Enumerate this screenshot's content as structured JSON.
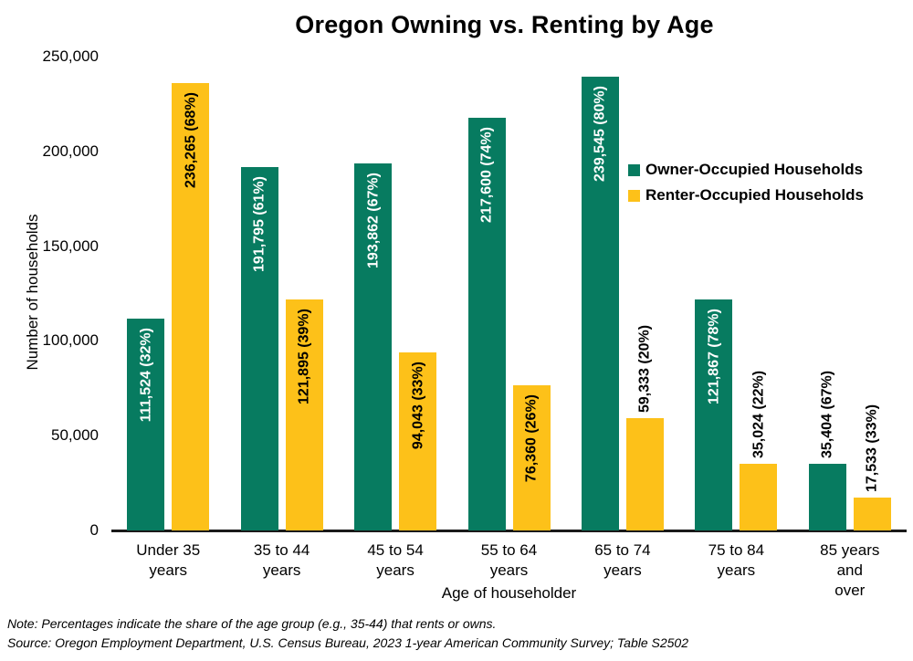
{
  "page": {
    "note": "Note: Percentages indicate the share of the age group (e.g., 35-44) that rents or owns.",
    "source": "Source: Oregon Employment Department, U.S. Census Bureau, 2023 1-year American Community Survey; Table S2502"
  },
  "chart_data": {
    "type": "bar",
    "title": "Oregon Owning vs. Renting by Age",
    "xlabel": "Age of householder",
    "ylabel": "Number of households",
    "ylim": [
      0,
      250000
    ],
    "grid": false,
    "legend_position": "inside-right",
    "background_color": "#ffffff",
    "yticks": [
      {
        "value": 0,
        "label": "0"
      },
      {
        "value": 50000,
        "label": "50,000"
      },
      {
        "value": 100000,
        "label": "100,000"
      },
      {
        "value": 150000,
        "label": "150,000"
      },
      {
        "value": 200000,
        "label": "200,000"
      },
      {
        "value": 250000,
        "label": "250,000"
      }
    ],
    "categories": [
      "Under 35 years",
      "35 to 44 years",
      "45 to 54 years",
      "55 to 64 years",
      "65 to 74 years",
      "75 to 84 years",
      "85 years and over"
    ],
    "category_lines": [
      [
        "Under 35",
        "years"
      ],
      [
        "35 to 44",
        "years"
      ],
      [
        "45 to 54",
        "years"
      ],
      [
        "55 to 64",
        "years"
      ],
      [
        "65 to 74",
        "years"
      ],
      [
        "75 to 84",
        "years"
      ],
      [
        "85 years and",
        "over"
      ]
    ],
    "series": [
      {
        "key": "owner",
        "name": "Owner-Occupied Households",
        "color": "#077B60",
        "inside_label_color": "#FFFFFF",
        "outside_label_color": "#000000",
        "values": [
          111524,
          191795,
          193862,
          217600,
          239545,
          121867,
          35404
        ],
        "data_labels": [
          "111,524 (32%)",
          "191,795 (61%)",
          "193,862 (67%)",
          "217,600 (74%)",
          "239,545 (80%)",
          "121,867 (78%)",
          "35,404 (67%)"
        ],
        "label_placement": [
          "inside",
          "inside",
          "inside",
          "inside",
          "inside",
          "inside",
          "outside"
        ]
      },
      {
        "key": "renter",
        "name": "Renter-Occupied Households",
        "color": "#FDC119",
        "inside_label_color": "#000000",
        "outside_label_color": "#000000",
        "values": [
          236265,
          121895,
          94043,
          76360,
          59333,
          35024,
          17533
        ],
        "data_labels": [
          "236,265 (68%)",
          "121,895 (39%)",
          "94,043 (33%)",
          "76,360 (26%)",
          "59,333 (20%)",
          "35,024 (22%)",
          "17,533 (33%)"
        ],
        "label_placement": [
          "inside",
          "inside",
          "inside",
          "inside",
          "outside",
          "outside",
          "outside"
        ]
      }
    ]
  }
}
